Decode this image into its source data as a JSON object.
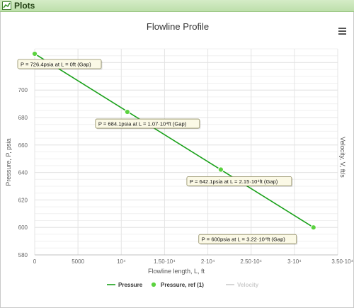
{
  "panel": {
    "title": "Plots",
    "icon": "chart-icon"
  },
  "menu": {
    "icon": "hamburger-menu-icon"
  },
  "colors": {
    "pressure_line": "#1aa11a",
    "ref_marker": "#5bd23f",
    "velocity": "#cccccc",
    "header_bg": "#c8e6b6",
    "grid": "#e4e4e4"
  },
  "chart_data": {
    "type": "line",
    "title": "Flowline Profile",
    "xlabel": "Flowline length, L, ft",
    "ylabel": "Pressure, P, psia",
    "ylabel_right": "Velocity, V, ft/s",
    "xlim": [
      0,
      35000
    ],
    "ylim": [
      580,
      730
    ],
    "x_ticks": [
      {
        "value": 0,
        "label": "0"
      },
      {
        "value": 5000,
        "label": "5000"
      },
      {
        "value": 10000,
        "label": "10⁴"
      },
      {
        "value": 15000,
        "label": "1.50·10⁴"
      },
      {
        "value": 20000,
        "label": "2·10⁴"
      },
      {
        "value": 25000,
        "label": "2.50·10⁴"
      },
      {
        "value": 30000,
        "label": "3·10⁴"
      },
      {
        "value": 35000,
        "label": "3.50·10⁴"
      }
    ],
    "y_ticks": [
      {
        "value": 580,
        "label": "580"
      },
      {
        "value": 600,
        "label": "600"
      },
      {
        "value": 620,
        "label": "620"
      },
      {
        "value": 640,
        "label": "640"
      },
      {
        "value": 660,
        "label": "660"
      },
      {
        "value": 680,
        "label": "680"
      },
      {
        "value": 700,
        "label": "700"
      },
      {
        "value": 720,
        "label": "720"
      }
    ],
    "series": [
      {
        "name": "Pressure",
        "type": "line",
        "x": [
          0,
          32200
        ],
        "y": [
          726.4,
          600
        ]
      },
      {
        "name": "Pressure, ref (1)",
        "type": "scatter",
        "x": [
          0,
          10700,
          21500,
          32200
        ],
        "y": [
          726.4,
          684.1,
          642.1,
          600
        ]
      },
      {
        "name": "Velocity",
        "type": "line",
        "x": [],
        "y": []
      }
    ],
    "annotations": [
      {
        "x": 0,
        "y": 726.4,
        "text": "P = 726.4psia at L = 0ft (Gap)"
      },
      {
        "x": 10700,
        "y": 684.1,
        "text": "P = 684.1psia at L = 1.07·10⁴ft (Gap)"
      },
      {
        "x": 21500,
        "y": 642.1,
        "text": "P = 642.1psia at L = 2.15·10⁴ft (Gap)"
      },
      {
        "x": 32200,
        "y": 600,
        "text": "P = 600psia at L = 3.22·10⁴ft (Gap)"
      }
    ],
    "legend": {
      "placement": "bottom-center",
      "items": [
        {
          "label": "Pressure",
          "symbol": "line",
          "color": "#1aa11a",
          "active": true
        },
        {
          "label": "Pressure, ref (1)",
          "symbol": "marker",
          "color": "#5bd23f",
          "active": true
        },
        {
          "label": "Velocity",
          "symbol": "line",
          "color": "#cccccc",
          "active": false
        }
      ]
    },
    "grid": true
  }
}
